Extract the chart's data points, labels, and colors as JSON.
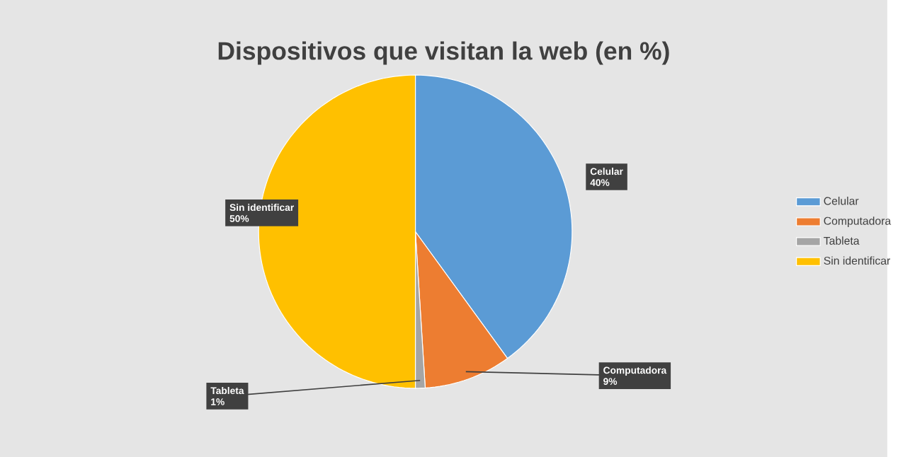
{
  "chart_data": {
    "type": "pie",
    "title": "Dispositivos que visitan la web (en %)",
    "categories": [
      "Celular",
      "Computadora",
      "Tableta",
      "Sin identificar"
    ],
    "values": [
      40,
      9,
      1,
      50
    ],
    "value_labels": [
      "40%",
      "9%",
      "1%",
      "50%"
    ],
    "colors": [
      "#5b9bd5",
      "#ed7d31",
      "#a5a5a5",
      "#ffc000"
    ],
    "legend": "right"
  }
}
